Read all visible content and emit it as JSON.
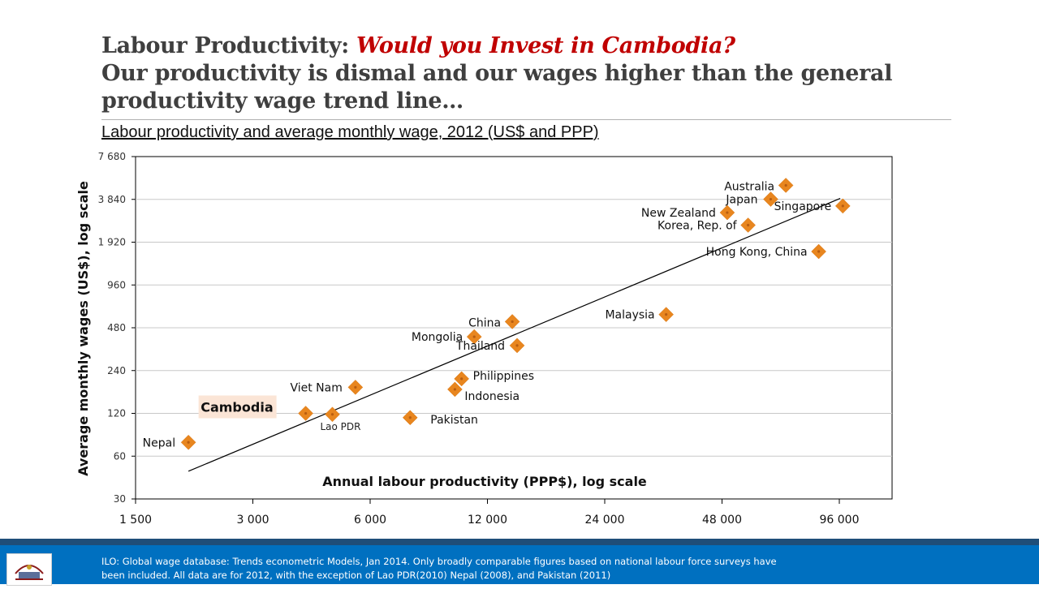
{
  "slide": {
    "title_prefix": "Labour Productivity: ",
    "title_accent": "Would you Invest in Cambodia?",
    "title_line2": "Our productivity is dismal and our wages higher than the general productivity wage trend line…",
    "footer_note": "ILO: Global wage database: Trends econometric Models, Jan 2014.  Only broadly comparable figures based on national labour force surveys have been included. All data are for 2012, with the exception of Lao PDR(2010) Nepal (2008), and Pakistan (2011)"
  },
  "colors": {
    "marker": "#e8861f",
    "marker_inner": "#b85d10",
    "trend": "#000000",
    "grid": "#c8c8c8",
    "footer": "#0070c0",
    "footer_band": "#1f4e79",
    "cambodia_highlight": "#fbe5d6",
    "title_accent": "#c00000"
  },
  "chart_data": {
    "type": "scatter",
    "title": "Labour productivity and average monthly wage, 2012 (US$ and PPP)",
    "xlabel": "Annual labour productivity (PPP$), log scale",
    "ylabel": "Average monthly wages (US$), log scale",
    "x_scale": "log",
    "y_scale": "log",
    "xlim": [
      1500,
      150000
    ],
    "ylim": [
      30,
      7680
    ],
    "x_ticks": [
      1500,
      3000,
      6000,
      12000,
      24000,
      48000,
      96000
    ],
    "x_tick_labels": [
      "1 500",
      "3 000",
      "6 000",
      "12 000",
      "24 000",
      "48 000",
      "96 000"
    ],
    "y_ticks": [
      30,
      60,
      120,
      240,
      480,
      960,
      1920,
      3840,
      7680
    ],
    "y_tick_labels": [
      "30",
      "60",
      "120",
      "240",
      "480",
      "960",
      "1 920",
      "3 840",
      "7 680"
    ],
    "grid": "horizontal",
    "points": [
      {
        "label": "Nepal",
        "x": 2050,
        "y": 75
      },
      {
        "label": "Cambodia",
        "x": 4100,
        "y": 120
      },
      {
        "label": "Lao PDR",
        "x": 4800,
        "y": 118
      },
      {
        "label": "Viet Nam",
        "x": 5500,
        "y": 183
      },
      {
        "label": "Pakistan",
        "x": 7600,
        "y": 112
      },
      {
        "label": "Indonesia",
        "x": 9900,
        "y": 177
      },
      {
        "label": "Philippines",
        "x": 10300,
        "y": 210
      },
      {
        "label": "Mongolia",
        "x": 11100,
        "y": 415
      },
      {
        "label": "China",
        "x": 13900,
        "y": 530
      },
      {
        "label": "Thailand",
        "x": 14300,
        "y": 360
      },
      {
        "label": "Malaysia",
        "x": 34500,
        "y": 595
      },
      {
        "label": "New Zealand",
        "x": 49500,
        "y": 3100
      },
      {
        "label": "Korea, Rep. of",
        "x": 56000,
        "y": 2530
      },
      {
        "label": "Japan",
        "x": 64000,
        "y": 3850
      },
      {
        "label": "Australia",
        "x": 70000,
        "y": 4820
      },
      {
        "label": "Hong Kong, China",
        "x": 85000,
        "y": 1650
      },
      {
        "label": "Singapore",
        "x": 98000,
        "y": 3450
      }
    ],
    "trend_line": [
      {
        "x": 2050,
        "y": 47
      },
      {
        "x": 96500,
        "y": 3900
      }
    ],
    "highlight": "Cambodia"
  }
}
